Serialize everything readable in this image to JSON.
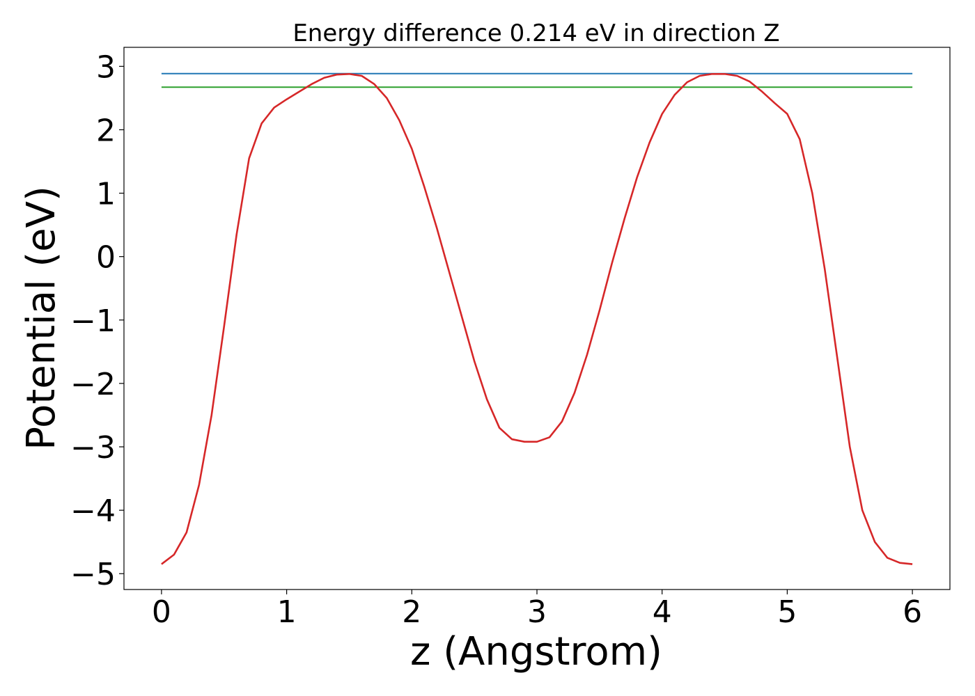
{
  "chart_data": {
    "type": "line",
    "title": "Energy difference 0.214 eV in direction Z",
    "xlabel": "z (Angstrom)",
    "ylabel": "Potential (eV)",
    "xlim": [
      -0.3,
      6.3
    ],
    "ylim": [
      -5.25,
      3.3
    ],
    "xticks": [
      0,
      1,
      2,
      3,
      4,
      5,
      6
    ],
    "xtick_labels": [
      "0",
      "1",
      "2",
      "3",
      "4",
      "5",
      "6"
    ],
    "yticks": [
      3,
      2,
      1,
      0,
      -1,
      -2,
      -3,
      -4,
      -5
    ],
    "ytick_labels": [
      "3",
      "2",
      "1",
      "0",
      "−1",
      "−2",
      "−3",
      "−4",
      "−5"
    ],
    "grid": false,
    "legend": "none",
    "series": [
      {
        "color": "#d62728",
        "x": [
          0.0,
          0.1,
          0.2,
          0.3,
          0.4,
          0.5,
          0.6,
          0.7,
          0.8,
          0.9,
          1.0,
          1.1,
          1.2,
          1.3,
          1.4,
          1.5,
          1.6,
          1.7,
          1.8,
          1.9,
          2.0,
          2.1,
          2.2,
          2.3,
          2.4,
          2.5,
          2.6,
          2.7,
          2.8,
          2.9,
          3.0,
          3.1,
          3.2,
          3.3,
          3.4,
          3.5,
          3.6,
          3.7,
          3.8,
          3.9,
          4.0,
          4.1,
          4.2,
          4.3,
          4.4,
          4.5,
          4.6,
          4.7,
          4.8,
          4.9,
          5.0,
          5.1,
          5.2,
          5.3,
          5.4,
          5.5,
          5.6,
          5.7,
          5.8,
          5.9,
          6.0
        ],
        "y": [
          -4.85,
          -4.7,
          -4.35,
          -3.6,
          -2.5,
          -1.1,
          0.35,
          1.55,
          2.1,
          2.35,
          2.48,
          2.6,
          2.72,
          2.82,
          2.87,
          2.88,
          2.85,
          2.72,
          2.5,
          2.15,
          1.7,
          1.1,
          0.45,
          -0.25,
          -0.95,
          -1.65,
          -2.25,
          -2.7,
          -2.88,
          -2.92,
          -2.92,
          -2.85,
          -2.6,
          -2.15,
          -1.55,
          -0.85,
          -0.1,
          0.6,
          1.25,
          1.8,
          2.25,
          2.55,
          2.75,
          2.85,
          2.88,
          2.88,
          2.85,
          2.76,
          2.6,
          2.42,
          2.25,
          1.85,
          1.0,
          -0.2,
          -1.6,
          -3.0,
          -4.0,
          -4.5,
          -4.75,
          -4.83,
          -4.85
        ]
      },
      {
        "color": "#1f77b4",
        "x": [
          0,
          6
        ],
        "y": [
          2.885,
          2.885
        ]
      },
      {
        "color": "#2ca02c",
        "x": [
          0,
          6
        ],
        "y": [
          2.671,
          2.671
        ]
      }
    ]
  }
}
